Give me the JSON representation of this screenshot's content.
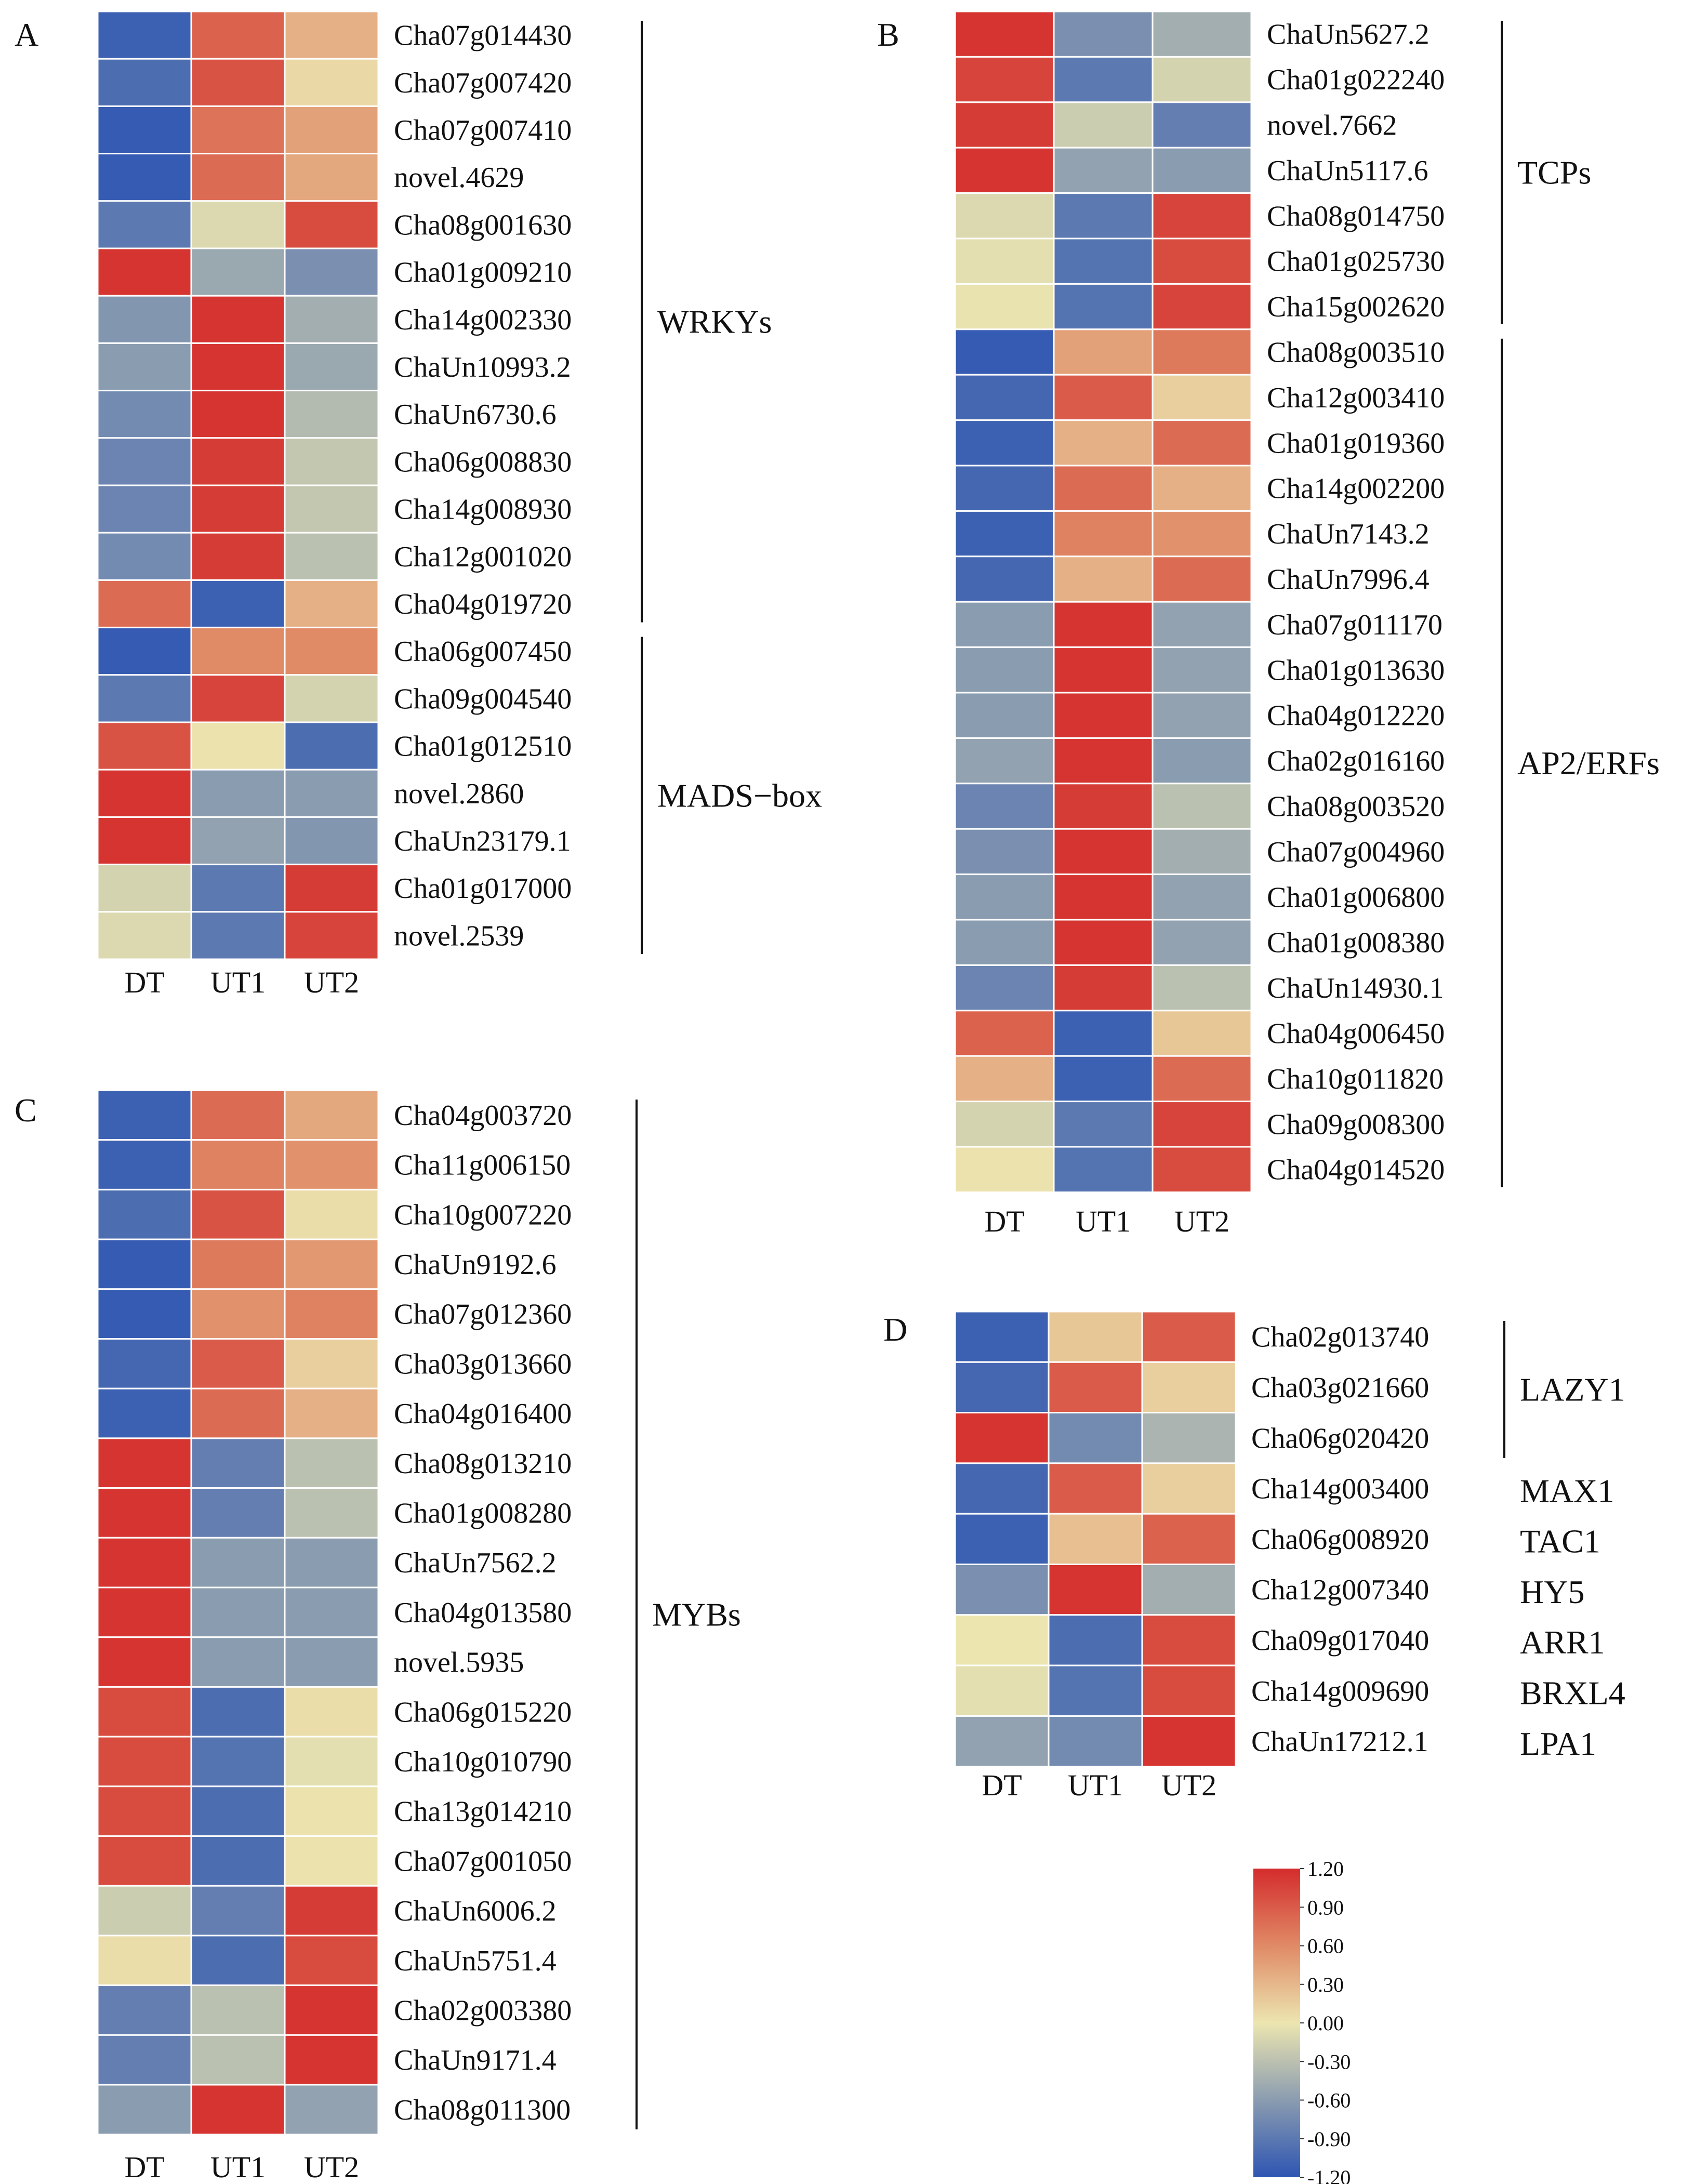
{
  "figure": {
    "colorbar": {
      "ticks": [
        "1.20",
        "0.90",
        "0.60",
        "0.30",
        "0.00",
        "-0.30",
        "-0.60",
        "-0.90",
        "-1.20"
      ],
      "min": -1.2,
      "max": 1.2,
      "stops": [
        "#2e55b2",
        "#8a9cb0",
        "#ece5b0",
        "#e08a66",
        "#d42c2c"
      ]
    }
  },
  "chart_data": [
    {
      "type": "heatmap",
      "panel": "A",
      "columns": [
        "DT",
        "UT1",
        "UT2"
      ],
      "rows": [
        {
          "gene": "Cha07g014430",
          "values": [
            -1.1,
            0.85,
            0.35
          ]
        },
        {
          "gene": "Cha07g007420",
          "values": [
            -1.0,
            0.95,
            0.08
          ]
        },
        {
          "gene": "Cha07g007410",
          "values": [
            -1.15,
            0.75,
            0.45
          ]
        },
        {
          "gene": "novel.4629",
          "values": [
            -1.15,
            0.8,
            0.4
          ]
        },
        {
          "gene": "Cha08g001630",
          "values": [
            -0.9,
            -0.1,
            1.0
          ]
        },
        {
          "gene": "Cha01g009210",
          "values": [
            1.15,
            -0.5,
            -0.7
          ]
        },
        {
          "gene": "Cha14g002330",
          "values": [
            -0.65,
            1.15,
            -0.45
          ]
        },
        {
          "gene": "ChaUn10993.2",
          "values": [
            -0.6,
            1.15,
            -0.5
          ]
        },
        {
          "gene": "ChaUn6730.6",
          "values": [
            -0.75,
            1.15,
            -0.35
          ]
        },
        {
          "gene": "Cha06g008830",
          "values": [
            -0.8,
            1.1,
            -0.25
          ]
        },
        {
          "gene": "Cha14g008930",
          "values": [
            -0.8,
            1.1,
            -0.25
          ]
        },
        {
          "gene": "Cha12g001020",
          "values": [
            -0.75,
            1.1,
            -0.3
          ]
        },
        {
          "gene": "Cha04g019720",
          "values": [
            0.8,
            -1.1,
            0.35
          ]
        },
        {
          "gene": "Cha06g007450",
          "values": [
            -1.15,
            0.6,
            0.6
          ]
        },
        {
          "gene": "Cha09g004540",
          "values": [
            -0.9,
            1.05,
            -0.15
          ]
        },
        {
          "gene": "Cha01g012510",
          "values": [
            0.95,
            0.02,
            -1.0
          ]
        },
        {
          "gene": "novel.2860",
          "values": [
            1.15,
            -0.6,
            -0.6
          ]
        },
        {
          "gene": "ChaUn23179.1",
          "values": [
            1.15,
            -0.55,
            -0.65
          ]
        },
        {
          "gene": "Cha01g017000",
          "values": [
            -0.15,
            -0.9,
            1.1
          ]
        },
        {
          "gene": "novel.2539",
          "values": [
            -0.1,
            -0.9,
            1.05
          ]
        }
      ],
      "groups": [
        {
          "label": "WRKYs",
          "start": 0,
          "end": 12
        },
        {
          "label": "MADS−box",
          "start": 13,
          "end": 19
        }
      ]
    },
    {
      "type": "heatmap",
      "panel": "B",
      "columns": [
        "DT",
        "UT1",
        "UT2"
      ],
      "rows": [
        {
          "gene": "ChaUn5627.2",
          "values": [
            1.15,
            -0.7,
            -0.45
          ]
        },
        {
          "gene": "Cha01g022240",
          "values": [
            1.05,
            -0.9,
            -0.15
          ]
        },
        {
          "gene": "novel.7662",
          "values": [
            1.1,
            -0.2,
            -0.85
          ]
        },
        {
          "gene": "ChaUn5117.6",
          "values": [
            1.15,
            -0.55,
            -0.6
          ]
        },
        {
          "gene": "Cha08g014750",
          "values": [
            -0.1,
            -0.9,
            1.05
          ]
        },
        {
          "gene": "Cha01g025730",
          "values": [
            -0.05,
            -0.95,
            1.0
          ]
        },
        {
          "gene": "Cha15g002620",
          "values": [
            -0.02,
            -0.95,
            1.05
          ]
        },
        {
          "gene": "Cha08g003510",
          "values": [
            -1.15,
            0.45,
            0.7
          ]
        },
        {
          "gene": "Cha12g003410",
          "values": [
            -1.05,
            0.9,
            0.15
          ]
        },
        {
          "gene": "Cha01g019360",
          "values": [
            -1.1,
            0.35,
            0.8
          ]
        },
        {
          "gene": "Cha14g002200",
          "values": [
            -1.05,
            0.8,
            0.35
          ]
        },
        {
          "gene": "ChaUn7143.2",
          "values": [
            -1.1,
            0.65,
            0.55
          ]
        },
        {
          "gene": "ChaUn7996.4",
          "values": [
            -1.05,
            0.35,
            0.8
          ]
        },
        {
          "gene": "Cha07g011170",
          "values": [
            -0.6,
            1.15,
            -0.55
          ]
        },
        {
          "gene": "Cha01g013630",
          "values": [
            -0.6,
            1.15,
            -0.55
          ]
        },
        {
          "gene": "Cha04g012220",
          "values": [
            -0.6,
            1.15,
            -0.55
          ]
        },
        {
          "gene": "Cha02g016160",
          "values": [
            -0.55,
            1.15,
            -0.6
          ]
        },
        {
          "gene": "Cha08g003520",
          "values": [
            -0.8,
            1.1,
            -0.3
          ]
        },
        {
          "gene": "Cha07g004960",
          "values": [
            -0.7,
            1.15,
            -0.45
          ]
        },
        {
          "gene": "Cha01g006800",
          "values": [
            -0.6,
            1.15,
            -0.55
          ]
        },
        {
          "gene": "Cha01g008380",
          "values": [
            -0.6,
            1.15,
            -0.55
          ]
        },
        {
          "gene": "ChaUn14930.1",
          "values": [
            -0.8,
            1.1,
            -0.3
          ]
        },
        {
          "gene": "Cha04g006450",
          "values": [
            0.85,
            -1.1,
            0.2
          ]
        },
        {
          "gene": "Cha10g011820",
          "values": [
            0.35,
            -1.1,
            0.8
          ]
        },
        {
          "gene": "Cha09g008300",
          "values": [
            -0.15,
            -0.9,
            1.05
          ]
        },
        {
          "gene": "Cha04g014520",
          "values": [
            0.02,
            -0.95,
            1.0
          ]
        }
      ],
      "groups": [
        {
          "label": "TCPs",
          "start": 0,
          "end": 6
        },
        {
          "label": "AP2/ERFs",
          "start": 7,
          "end": 25
        }
      ]
    },
    {
      "type": "heatmap",
      "panel": "C",
      "columns": [
        "DT",
        "UT1",
        "UT2"
      ],
      "rows": [
        {
          "gene": "Cha04g003720",
          "values": [
            -1.1,
            0.8,
            0.4
          ]
        },
        {
          "gene": "Cha11g006150",
          "values": [
            -1.1,
            0.65,
            0.55
          ]
        },
        {
          "gene": "Cha10g007220",
          "values": [
            -1.0,
            0.95,
            0.05
          ]
        },
        {
          "gene": "ChaUn9192.6",
          "values": [
            -1.15,
            0.7,
            0.5
          ]
        },
        {
          "gene": "Cha07g012360",
          "values": [
            -1.15,
            0.55,
            0.65
          ]
        },
        {
          "gene": "Cha03g013660",
          "values": [
            -1.05,
            0.9,
            0.15
          ]
        },
        {
          "gene": "Cha04g016400",
          "values": [
            -1.1,
            0.8,
            0.35
          ]
        },
        {
          "gene": "Cha08g013210",
          "values": [
            1.15,
            -0.85,
            -0.3
          ]
        },
        {
          "gene": "Cha01g008280",
          "values": [
            1.15,
            -0.85,
            -0.3
          ]
        },
        {
          "gene": "ChaUn7562.2",
          "values": [
            1.15,
            -0.6,
            -0.6
          ]
        },
        {
          "gene": "Cha04g013580",
          "values": [
            1.15,
            -0.6,
            -0.6
          ]
        },
        {
          "gene": "novel.5935",
          "values": [
            1.15,
            -0.6,
            -0.6
          ]
        },
        {
          "gene": "Cha06g015220",
          "values": [
            1.0,
            -1.0,
            0.05
          ]
        },
        {
          "gene": "Cha10g010790",
          "values": [
            1.0,
            -0.95,
            -0.05
          ]
        },
        {
          "gene": "Cha13g014210",
          "values": [
            1.0,
            -1.0,
            0.02
          ]
        },
        {
          "gene": "Cha07g001050",
          "values": [
            1.0,
            -1.0,
            0.02
          ]
        },
        {
          "gene": "ChaUn6006.2",
          "values": [
            -0.2,
            -0.85,
            1.1
          ]
        },
        {
          "gene": "ChaUn5751.4",
          "values": [
            0.05,
            -1.0,
            1.0
          ]
        },
        {
          "gene": "Cha02g003380",
          "values": [
            -0.85,
            -0.3,
            1.15
          ]
        },
        {
          "gene": "ChaUn9171.4",
          "values": [
            -0.85,
            -0.3,
            1.15
          ]
        },
        {
          "gene": "Cha08g011300",
          "values": [
            -0.6,
            1.15,
            -0.55
          ]
        }
      ],
      "groups": [
        {
          "label": "MYBs",
          "start": 0,
          "end": 20
        }
      ]
    },
    {
      "type": "heatmap",
      "panel": "D",
      "columns": [
        "DT",
        "UT1",
        "UT2"
      ],
      "rows": [
        {
          "gene": "Cha02g013740",
          "values": [
            -1.1,
            0.2,
            0.9
          ]
        },
        {
          "gene": "Cha03g021660",
          "values": [
            -1.05,
            0.9,
            0.15
          ]
        },
        {
          "gene": "Cha06g020420",
          "values": [
            1.15,
            -0.75,
            -0.4
          ]
        },
        {
          "gene": "Cha14g003400",
          "values": [
            -1.05,
            0.9,
            0.15
          ]
        },
        {
          "gene": "Cha06g008920",
          "values": [
            -1.1,
            0.25,
            0.85
          ]
        },
        {
          "gene": "Cha12g007340",
          "values": [
            -0.7,
            1.15,
            -0.45
          ]
        },
        {
          "gene": "Cha09g017040",
          "values": [
            0.0,
            -1.0,
            1.0
          ]
        },
        {
          "gene": "Cha14g009690",
          "values": [
            -0.05,
            -0.95,
            1.0
          ]
        },
        {
          "gene": "ChaUn17212.1",
          "values": [
            -0.55,
            -0.75,
            1.15
          ]
        }
      ],
      "groups": [
        {
          "label": "LAZY1",
          "start": 0,
          "end": 2
        }
      ],
      "row_labels": [
        {
          "row": 3,
          "label": "MAX1"
        },
        {
          "row": 4,
          "label": "TAC1"
        },
        {
          "row": 5,
          "label": "HY5"
        },
        {
          "row": 6,
          "label": "ARR1"
        },
        {
          "row": 7,
          "label": "BRXL4"
        },
        {
          "row": 8,
          "label": "LPA1"
        }
      ]
    }
  ]
}
